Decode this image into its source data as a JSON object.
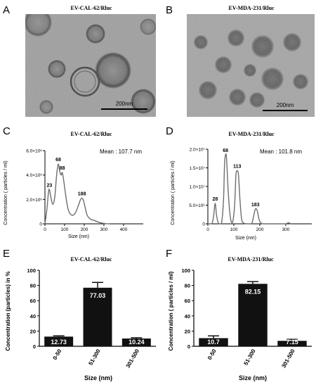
{
  "panels": {
    "A": {
      "letter": "A",
      "title": "EV-CAL-62/Rluc",
      "scale_bar": "200nm"
    },
    "B": {
      "letter": "B",
      "title": "EV-MDA-231/Rluc",
      "scale_bar": "200nm"
    },
    "C": {
      "letter": "C",
      "title": "EV-CAL-62/Rluc",
      "mean_label": "Mean : 107.7 nm",
      "ylabel": "Concentration ( particles / ml)",
      "xlabel": "Size (nm)",
      "y_ticks": [
        {
          "value": 0,
          "label": "0"
        },
        {
          "value": 2000000,
          "label": "2.0×10⁶"
        },
        {
          "value": 4000000,
          "label": "4.0×10⁶"
        },
        {
          "value": 6000000,
          "label": "6.0×10⁶"
        }
      ],
      "x_ticks": [
        "0",
        "100",
        "200",
        "300",
        "400"
      ],
      "peak_labels": [
        {
          "x": 23,
          "label": "23"
        },
        {
          "x": 68,
          "label": "68"
        },
        {
          "x": 88,
          "label": "88"
        },
        {
          "x": 188,
          "label": "188"
        }
      ]
    },
    "D": {
      "letter": "D",
      "title": "EV-MDA-231/Rluc",
      "mean_label": "Mean : 101.8 nm",
      "ylabel": "Concentration ( particles / ml)",
      "xlabel": "Size (nm)",
      "y_ticks": [
        {
          "value": 0,
          "label": "0"
        },
        {
          "value": 5000000,
          "label": "5.0×10⁶"
        },
        {
          "value": 10000000,
          "label": "1.0×10⁷"
        },
        {
          "value": 15000000,
          "label": "1.5×10⁷"
        },
        {
          "value": 20000000,
          "label": "2.0×10⁷"
        }
      ],
      "x_ticks": [
        "0",
        "100",
        "200",
        "300"
      ],
      "peak_labels": [
        {
          "x": 28,
          "label": "28"
        },
        {
          "x": 68,
          "label": "68"
        },
        {
          "x": 113,
          "label": "113"
        },
        {
          "x": 183,
          "label": "183"
        }
      ]
    },
    "E": {
      "letter": "E",
      "title": "EV-CAL-62/Rluc",
      "ylabel": "Concentration (particles) in %",
      "xlabel": "Size (nm)",
      "y_ticks": [
        "0",
        "20",
        "40",
        "60",
        "80",
        "100"
      ]
    },
    "F": {
      "letter": "F",
      "title": "EV-MDA-231/Rluc",
      "ylabel": "Concentration ( particles / ml)",
      "xlabel": "Size (nm)",
      "y_ticks": [
        "0",
        "20",
        "40",
        "60",
        "80",
        "100"
      ]
    }
  },
  "colors": {
    "line": "#6e6e6e",
    "bar": "#111111",
    "axis": "#000000",
    "tem_bg": "#9b9b9b"
  },
  "chart_data": [
    {
      "panel": "C",
      "type": "line",
      "title": "EV-CAL-62/Rluc",
      "xlabel": "Size (nm)",
      "ylabel": "Concentration ( particles / ml)",
      "xlim": [
        0,
        500
      ],
      "ylim": [
        0,
        6000000
      ],
      "x": [
        0,
        10,
        18,
        23,
        30,
        40,
        50,
        60,
        68,
        75,
        82,
        88,
        95,
        105,
        115,
        125,
        140,
        155,
        170,
        180,
        188,
        196,
        205,
        215,
        230,
        250,
        270,
        290,
        310,
        330
      ],
      "y": [
        0,
        1200000,
        2600000,
        2800000,
        2200000,
        1600000,
        2200000,
        4100000,
        4900000,
        4300000,
        4000000,
        4200000,
        3600000,
        2400000,
        1400000,
        900000,
        700000,
        900000,
        1500000,
        1950000,
        2100000,
        1900000,
        1300000,
        700000,
        400000,
        280000,
        150000,
        60000,
        10000,
        0
      ],
      "annotations": [
        "Mean : 107.7 nm",
        "23",
        "68",
        "88",
        "188"
      ]
    },
    {
      "panel": "D",
      "type": "line",
      "title": "EV-MDA-231/Rluc",
      "xlabel": "Size (nm)",
      "ylabel": "Concentration ( particles / ml)",
      "xlim": [
        0,
        400
      ],
      "ylim": [
        0,
        20000000
      ],
      "x": [
        0,
        15,
        22,
        28,
        34,
        42,
        52,
        60,
        64,
        68,
        72,
        78,
        86,
        95,
        103,
        108,
        113,
        118,
        124,
        132,
        150,
        168,
        176,
        183,
        190,
        198,
        210,
        240,
        280,
        300,
        310,
        320
      ],
      "y": [
        0,
        0,
        2000000,
        5500000,
        2000000,
        0,
        0,
        6000000,
        15500000,
        18500000,
        17500000,
        9000000,
        2000000,
        400000,
        5000000,
        13000000,
        14200000,
        13000000,
        6000000,
        600000,
        0,
        0,
        2000000,
        4000000,
        3500000,
        1000000,
        0,
        0,
        0,
        0,
        300000,
        0
      ],
      "annotations": [
        "Mean : 101.8 nm",
        "28",
        "68",
        "113",
        "183"
      ]
    },
    {
      "panel": "E",
      "type": "bar",
      "title": "EV-CAL-62/Rluc",
      "xlabel": "Size (nm)",
      "ylabel": "Concentration (particles) in %",
      "ylim": [
        0,
        100
      ],
      "categories": [
        "0-50",
        "51-300",
        "301-500"
      ],
      "values": [
        12.73,
        77.03,
        10.24
      ],
      "value_labels": [
        "12.73",
        "77.03",
        "10.24"
      ],
      "errors": [
        1,
        7,
        1
      ]
    },
    {
      "panel": "F",
      "type": "bar",
      "title": "EV-MDA-231/Rluc",
      "xlabel": "Size (nm)",
      "ylabel": "Concentration ( particles / ml)",
      "ylim": [
        0,
        100
      ],
      "categories": [
        "0-50",
        "51-300",
        "301-500"
      ],
      "values": [
        10.7,
        82.15,
        7.15
      ],
      "value_labels": [
        "10.7",
        "82.15",
        "7.15"
      ],
      "errors": [
        3,
        3,
        2
      ]
    }
  ]
}
